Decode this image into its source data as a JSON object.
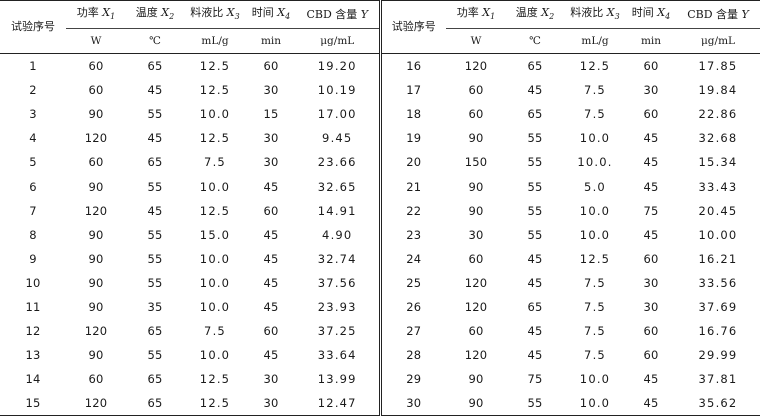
{
  "headers": {
    "index": "试验序号",
    "power_label": "功率",
    "power_var": "X",
    "power_sub": "1",
    "power_unit": "W",
    "temp_label": "温度",
    "temp_var": "X",
    "temp_sub": "2",
    "temp_unit": "℃",
    "ratio_label": "料液比",
    "ratio_var": "X",
    "ratio_sub": "3",
    "ratio_unit": "mL/g",
    "time_label": "时间",
    "time_var": "X",
    "time_sub": "4",
    "time_unit": "min",
    "cbd_label": "CBD 含量",
    "cbd_var": "Y",
    "cbd_unit": "μg/mL"
  },
  "rows": [
    [
      "1",
      "60",
      "65",
      "12.5",
      "60",
      "19.20",
      "16",
      "120",
      "65",
      "12.5",
      "60",
      "17.85"
    ],
    [
      "2",
      "60",
      "45",
      "12.5",
      "30",
      "10.19",
      "17",
      "60",
      "45",
      "7.5",
      "30",
      "19.84"
    ],
    [
      "3",
      "90",
      "55",
      "10.0",
      "15",
      "17.00",
      "18",
      "60",
      "65",
      "7.5",
      "60",
      "22.86"
    ],
    [
      "4",
      "120",
      "45",
      "12.5",
      "30",
      "9.45",
      "19",
      "90",
      "55",
      "10.0",
      "45",
      "32.68"
    ],
    [
      "5",
      "60",
      "65",
      "7.5",
      "30",
      "23.66",
      "20",
      "150",
      "55",
      "10.0.",
      "45",
      "15.34"
    ],
    [
      "6",
      "90",
      "55",
      "10.0",
      "45",
      "32.65",
      "21",
      "90",
      "55",
      "5.0",
      "45",
      "33.43"
    ],
    [
      "7",
      "120",
      "45",
      "12.5",
      "60",
      "14.91",
      "22",
      "90",
      "55",
      "10.0",
      "75",
      "20.45"
    ],
    [
      "8",
      "90",
      "55",
      "15.0",
      "45",
      "4.90",
      "23",
      "30",
      "55",
      "10.0",
      "45",
      "10.00"
    ],
    [
      "9",
      "90",
      "55",
      "10.0",
      "45",
      "32.74",
      "24",
      "60",
      "45",
      "12.5",
      "60",
      "16.21"
    ],
    [
      "10",
      "90",
      "55",
      "10.0",
      "45",
      "37.56",
      "25",
      "120",
      "45",
      "7.5",
      "30",
      "33.56"
    ],
    [
      "11",
      "90",
      "35",
      "10.0",
      "45",
      "23.93",
      "26",
      "120",
      "65",
      "7.5",
      "30",
      "37.69"
    ],
    [
      "12",
      "120",
      "65",
      "7.5",
      "60",
      "37.25",
      "27",
      "60",
      "45",
      "7.5",
      "60",
      "16.76"
    ],
    [
      "13",
      "90",
      "55",
      "10.0",
      "45",
      "33.64",
      "28",
      "120",
      "45",
      "7.5",
      "60",
      "29.99"
    ],
    [
      "14",
      "60",
      "65",
      "12.5",
      "30",
      "13.99",
      "29",
      "90",
      "75",
      "10.0",
      "45",
      "37.81"
    ],
    [
      "15",
      "120",
      "65",
      "12.5",
      "30",
      "12.47",
      "30",
      "90",
      "55",
      "10.0",
      "45",
      "35.62"
    ]
  ]
}
